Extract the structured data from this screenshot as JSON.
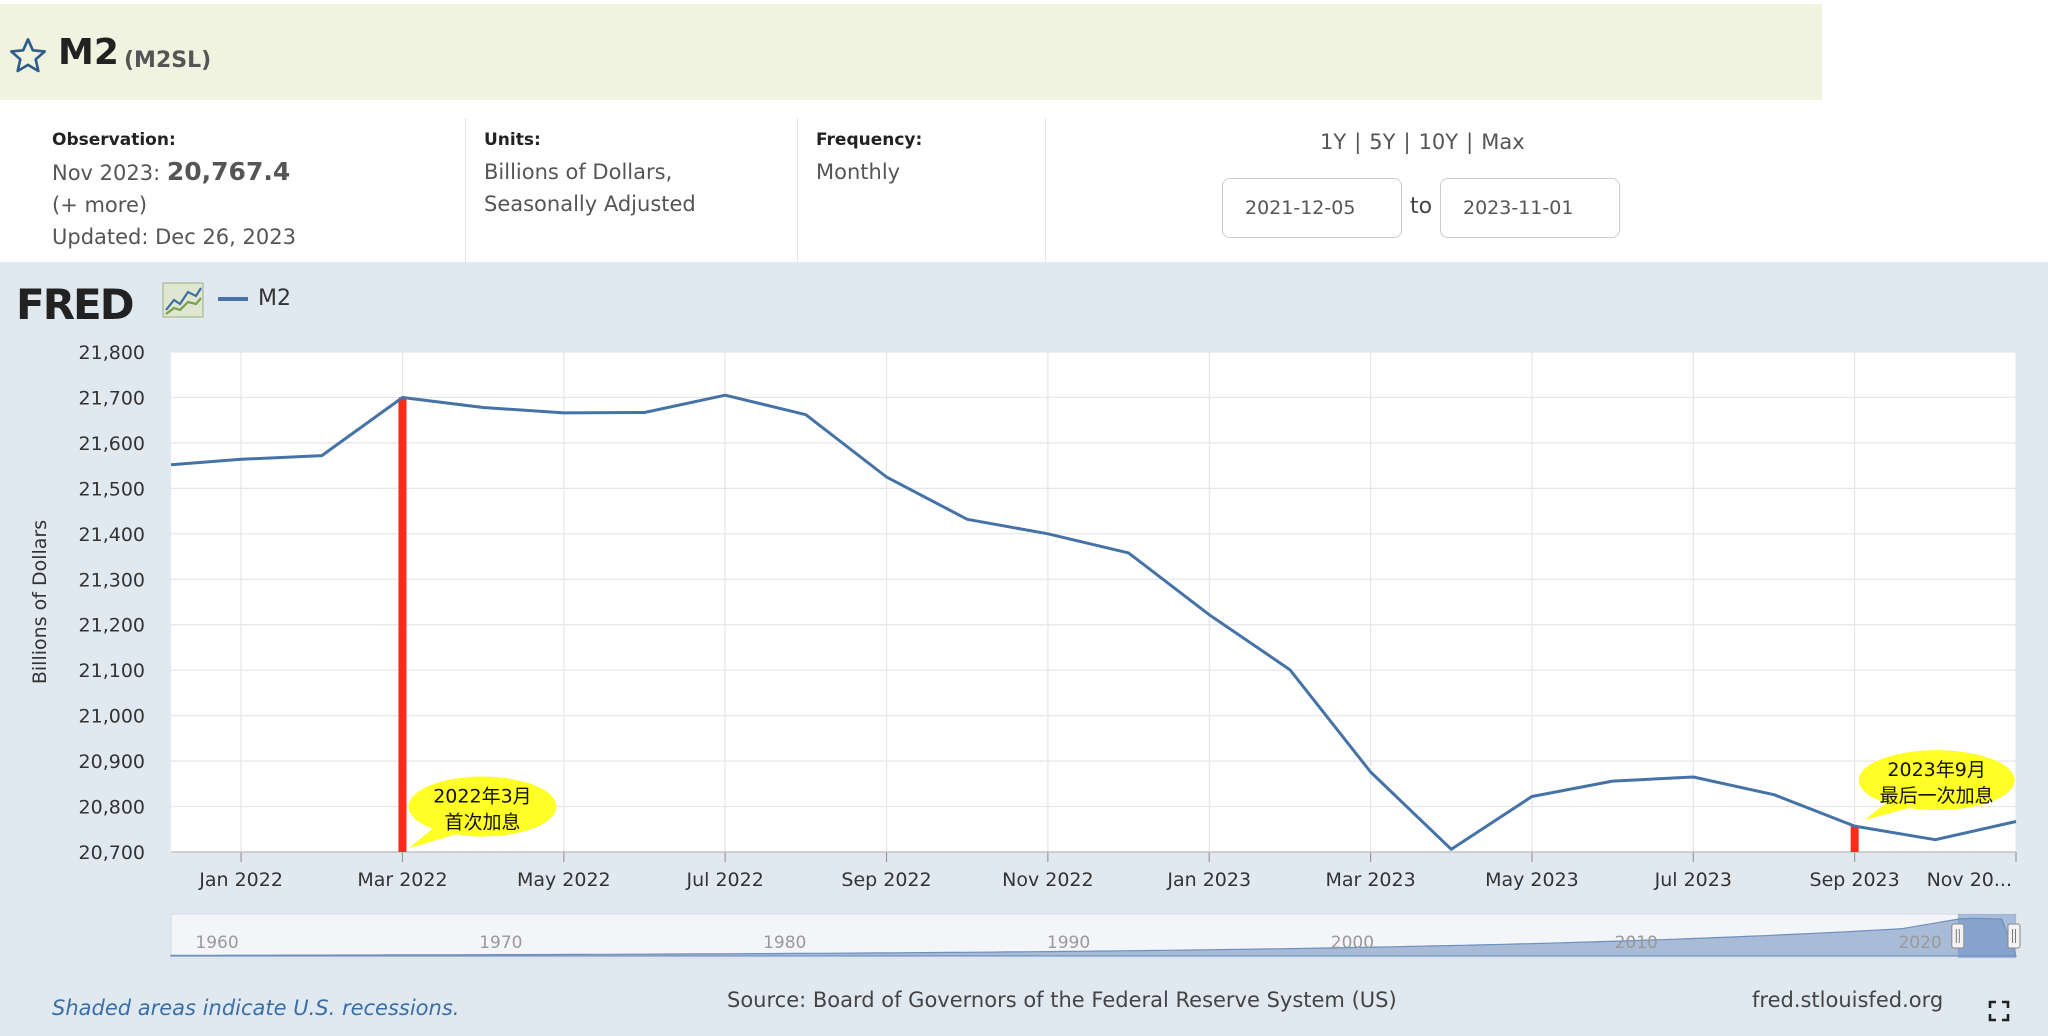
{
  "header": {
    "title": "M2",
    "series_id": "(M2SL)"
  },
  "info": {
    "observation_label": "Observation:",
    "observation_period": "Nov 2023:",
    "observation_value": "20,767.4",
    "more_link": "(+ more)",
    "updated": "Updated: Dec 26, 2023",
    "units_label": "Units:",
    "units_line1": "Billions of Dollars,",
    "units_line2": "Seasonally Adjusted",
    "frequency_label": "Frequency:",
    "frequency_value": "Monthly"
  },
  "range": {
    "links": [
      "1Y",
      "5Y",
      "10Y",
      "Max"
    ],
    "separator": "|",
    "start_date": "2021-12-05",
    "end_date": "2023-11-01",
    "to_label": "to"
  },
  "graph": {
    "logo_text": "FRED",
    "legend_label": "M2",
    "recession_note": "Shaded areas indicate U.S. recessions.",
    "source": "Source: Board of Governors of the Federal Reserve System (US)",
    "url": "fred.stlouisfed.org"
  },
  "chart_data": {
    "type": "line",
    "title": "",
    "xlabel": "",
    "ylabel": "Billions of Dollars",
    "ylim": [
      20700,
      21800
    ],
    "y_ticks": [
      "21,800",
      "21,700",
      "21,600",
      "21,500",
      "21,400",
      "21,300",
      "21,200",
      "21,100",
      "21,000",
      "20,900",
      "20,800",
      "20,700"
    ],
    "x_tick_labels": [
      "Jan 2022",
      "Mar 2022",
      "May 2022",
      "Jul 2022",
      "Sep 2022",
      "Nov 2022",
      "Jan 2023",
      "Mar 2023",
      "May 2023",
      "Jul 2023",
      "Sep 2023",
      "Nov 20..."
    ],
    "x_tick_months": [
      "2022-01",
      "2022-03",
      "2022-05",
      "2022-07",
      "2022-09",
      "2022-11",
      "2023-01",
      "2023-03",
      "2023-05",
      "2023-07",
      "2023-09",
      "2023-11"
    ],
    "x_range": [
      "2021-12-05",
      "2023-11-01"
    ],
    "grid": true,
    "series": [
      {
        "name": "M2",
        "color": "#4572a7",
        "x": [
          "2021-12",
          "2022-01",
          "2022-02",
          "2022-03",
          "2022-04",
          "2022-05",
          "2022-06",
          "2022-07",
          "2022-08",
          "2022-09",
          "2022-10",
          "2022-11",
          "2022-12",
          "2023-01",
          "2023-02",
          "2023-03",
          "2023-04",
          "2023-05",
          "2023-06",
          "2023-07",
          "2023-08",
          "2023-09",
          "2023-10",
          "2023-11"
        ],
        "values": [
          21552,
          21564,
          21572,
          21700,
          21678,
          21666,
          21667,
          21705,
          21662,
          21525,
          21432,
          21400,
          21358,
          21222,
          21101,
          20876,
          20706,
          20822,
          20856,
          20865,
          20826,
          20757,
          20727,
          20767
        ]
      }
    ],
    "markers": [
      {
        "x": "2022-03",
        "color": "#ff2a1a"
      },
      {
        "x": "2023-09",
        "color": "#ff2a1a"
      }
    ],
    "annotations": [
      {
        "line1": "2022年3月",
        "line2": "首次加息",
        "x": "2022-03",
        "y": 20800
      },
      {
        "line1": "2023年9月",
        "line2": "最后一次加息",
        "x": "2023-09",
        "y": 20858
      }
    ],
    "navigator": {
      "labels": [
        "1960",
        "1970",
        "1980",
        "1990",
        "2000",
        "2010",
        "2020"
      ]
    }
  }
}
